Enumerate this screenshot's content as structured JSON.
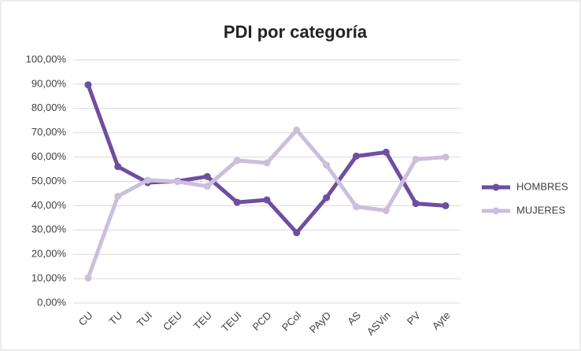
{
  "chart_data": {
    "type": "line",
    "title": "PDI por categoría",
    "categories": [
      "CU",
      "TU",
      "TUI",
      "CEU",
      "TEU",
      "TEUI",
      "PCD",
      "PCol",
      "PAyD",
      "AS",
      "ASVin",
      "PV",
      "Ayte"
    ],
    "series": [
      {
        "name": "HOMBRES",
        "color": "#6f4ea0",
        "values": [
          89.7,
          56.1,
          49.5,
          50.1,
          52.0,
          41.4,
          42.4,
          28.9,
          43.3,
          60.4,
          62.0,
          40.9,
          40.0
        ]
      },
      {
        "name": "MUJERES",
        "color": "#cbbfdc",
        "values": [
          10.3,
          43.9,
          50.5,
          49.9,
          48.0,
          58.6,
          57.6,
          71.1,
          56.7,
          39.6,
          38.0,
          59.1,
          60.0
        ]
      }
    ],
    "ylim": [
      0,
      100
    ],
    "yticks": [
      {
        "value": 0,
        "label": "0,00%"
      },
      {
        "value": 10,
        "label": "10,00%"
      },
      {
        "value": 20,
        "label": "20,00%"
      },
      {
        "value": 30,
        "label": "30,00%"
      },
      {
        "value": 40,
        "label": "40,00%"
      },
      {
        "value": 50,
        "label": "50,00%"
      },
      {
        "value": 60,
        "label": "60,00%"
      },
      {
        "value": 70,
        "label": "70,00%"
      },
      {
        "value": 80,
        "label": "80,00%"
      },
      {
        "value": 90,
        "label": "90,00%"
      },
      {
        "value": 100,
        "label": "100,00%"
      }
    ],
    "grid": true,
    "legend": "right"
  }
}
